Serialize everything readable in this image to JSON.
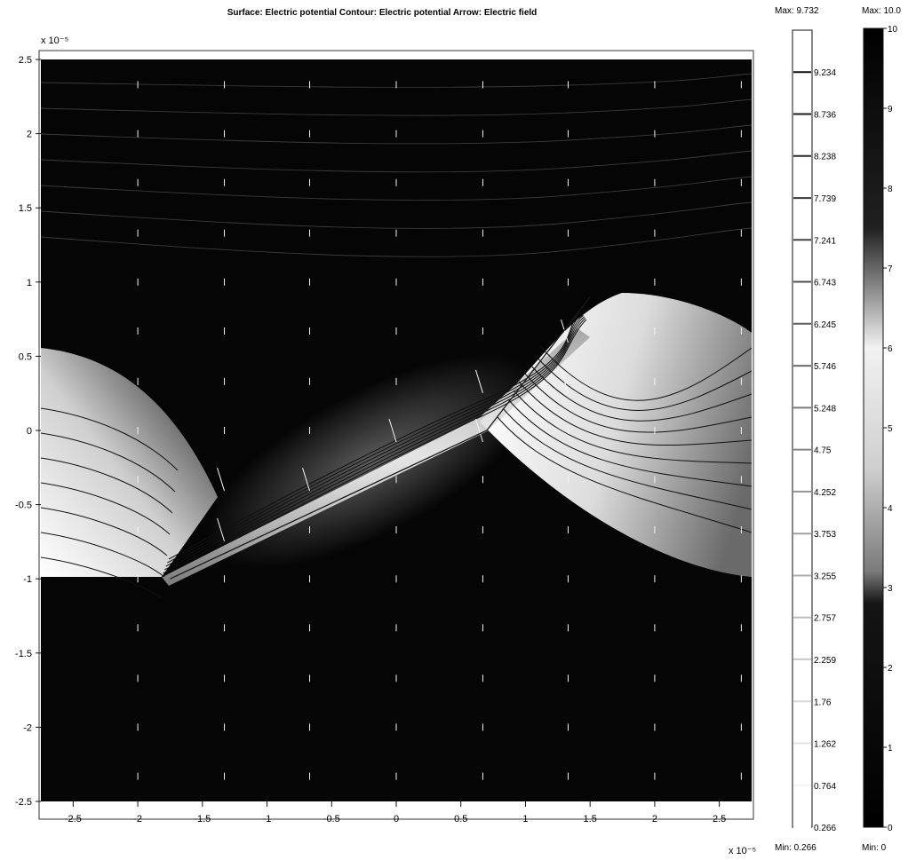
{
  "chart_data": [
    {
      "type": "surface-contour-arrow",
      "title": "Surface: Electric potential Contour: Electric potential Arrow: Electric field",
      "xlabel": "",
      "ylabel": "",
      "x_scale_label": "x 10⁻⁵",
      "y_scale_label": "x 10⁻⁵",
      "xlim": [
        -2.75,
        2.75
      ],
      "ylim": [
        -2.5,
        2.5
      ],
      "x_ticks": [
        -2.5,
        -2,
        -1.5,
        -1,
        -0.5,
        0,
        0.5,
        1,
        1.5,
        2,
        2.5
      ],
      "x_tick_labels": [
        "-2.5",
        "-2",
        "-1.5",
        "-1",
        "-0.5",
        "0",
        "0.5",
        "1",
        "1.5",
        "2",
        "2.5"
      ],
      "y_ticks": [
        2.5,
        2,
        1.5,
        1,
        0.5,
        0,
        -0.5,
        -1,
        -1.5,
        -2,
        -2.5
      ],
      "y_tick_labels": [
        "2.5",
        "2",
        "1.5",
        "1",
        "0.5",
        "0",
        "-0.5",
        "-1",
        "-1.5",
        "-2",
        "-2.5"
      ],
      "electrode_line": {
        "x": [
          -1.75,
          0.7,
          1.5
        ],
        "y": [
          -1.0,
          0.0,
          0.9
        ]
      },
      "arrow_grid": {
        "x": [
          -2,
          -1.33,
          -0.67,
          0,
          0.67,
          1.33,
          2,
          2.67
        ],
        "y": [
          2.33,
          2,
          1.67,
          1.33,
          1,
          0.67,
          0.33,
          0,
          -0.33,
          -0.67,
          -1,
          -1.33,
          -1.67,
          -2,
          -2.33
        ]
      }
    },
    {
      "type": "colorbar",
      "name": "contour",
      "max_label": "Max: 9.732",
      "min_label": "Min: 0.266",
      "range": [
        0.266,
        9.732
      ],
      "levels": [
        "9.234",
        "8.736",
        "8.238",
        "7.739",
        "7.241",
        "6.743",
        "6.245",
        "5.746",
        "5.248",
        "4.75",
        "4.252",
        "3.753",
        "3.255",
        "2.757",
        "2.259",
        "1.76",
        "1.262",
        "0.764",
        "0.266"
      ]
    },
    {
      "type": "colorbar",
      "name": "surface",
      "max_label": "Max: 10.0",
      "min_label": "Min: 0",
      "range": [
        0,
        10
      ],
      "ticks": [
        "10",
        "9",
        "8",
        "7",
        "6",
        "5",
        "4",
        "3",
        "2",
        "1",
        "0"
      ]
    }
  ]
}
